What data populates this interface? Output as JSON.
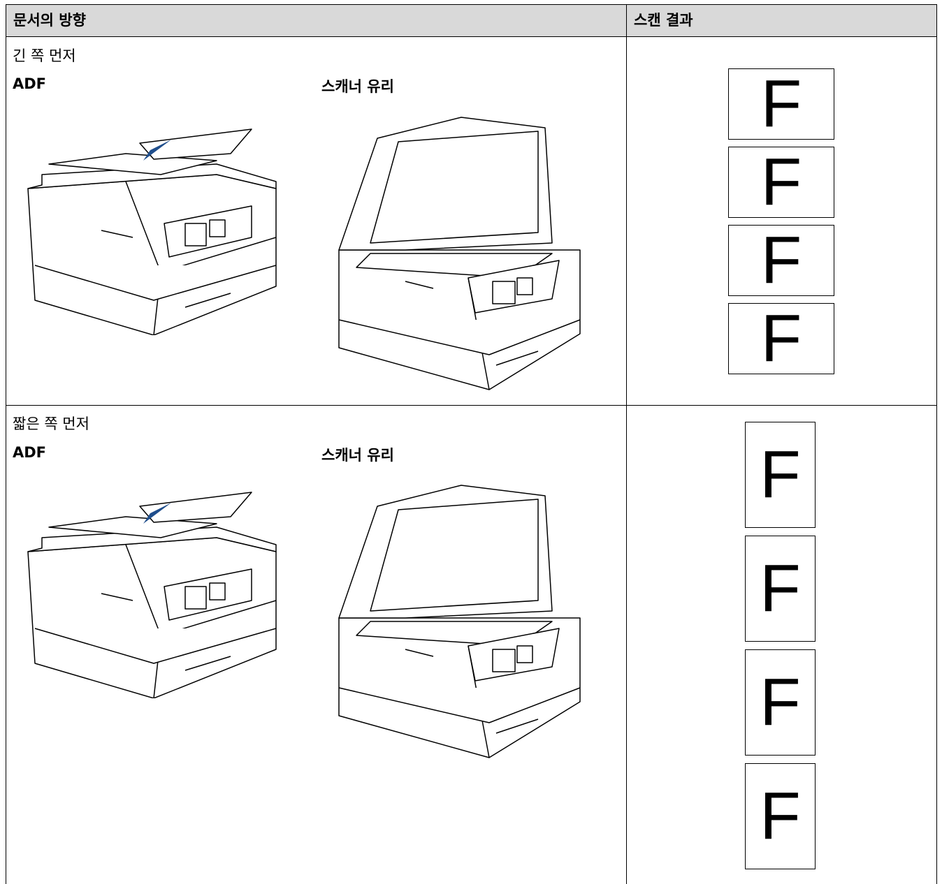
{
  "table": {
    "header": [
      "문서의 방향",
      "스캔 결과"
    ],
    "rows": [
      {
        "orientation": "긴 쪽 먼저",
        "adf": "ADF",
        "glass": "스캐너 유리",
        "results": [
          "F",
          "F",
          "F",
          "F"
        ]
      },
      {
        "orientation": "짧은 쪽 먼저",
        "adf": "ADF",
        "glass": "스캐너 유리",
        "results": [
          "F",
          "F",
          "F",
          "F"
        ]
      }
    ]
  }
}
